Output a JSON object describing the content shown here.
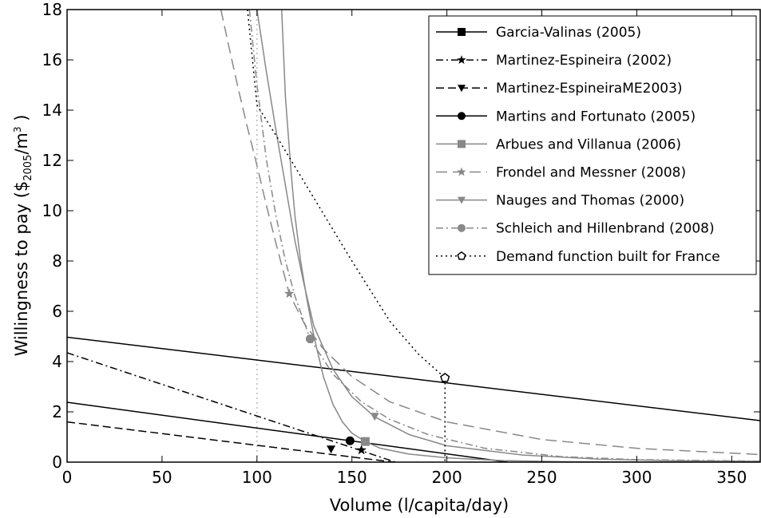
{
  "chart_data": {
    "type": "line",
    "title": "",
    "xlabel": "Volume (l/capita/day)",
    "ylabel_prefix": "Willingness to pay ($",
    "ylabel_sub": "2005",
    "ylabel_mid": "/m",
    "ylabel_sup": "3",
    "ylabel_suffix": " )",
    "xlim": [
      0,
      365
    ],
    "ylim": [
      0,
      18
    ],
    "xticks": [
      0,
      50,
      100,
      150,
      200,
      250,
      300,
      350
    ],
    "yticks": [
      0,
      2,
      4,
      6,
      8,
      10,
      12,
      14,
      16,
      18
    ],
    "grid": false,
    "legend_position": "top-right",
    "vlines": [
      {
        "x": 100,
        "color": "#bbbbbb",
        "dash": "dotted"
      }
    ],
    "series": [
      {
        "name": "Garcia-Valinas (2005)",
        "color": "#000000",
        "dash": "solid",
        "marker": "square",
        "x": [
          0,
          365
        ],
        "y": [
          4.97,
          1.65
        ],
        "marker_points": []
      },
      {
        "name": "Martinez-Espineira (2002)",
        "color": "#000000",
        "dash": "dashdot",
        "marker": "star",
        "x": [
          0,
          173
        ],
        "y": [
          4.35,
          0
        ],
        "marker_points": [
          [
            155,
            0.48
          ]
        ]
      },
      {
        "name": "Martinez-EspineiraME2003)",
        "color": "#000000",
        "dash": "dashed",
        "marker": "triangle-down",
        "x": [
          0,
          172
        ],
        "y": [
          1.6,
          0
        ],
        "marker_points": [
          [
            139,
            0.52
          ]
        ]
      },
      {
        "name": "Martins and Fortunato (2005)",
        "color": "#000000",
        "dash": "solid",
        "marker": "circle",
        "x": [
          0,
          232
        ],
        "y": [
          2.38,
          0
        ],
        "marker_points": [
          [
            149,
            0.85
          ]
        ]
      },
      {
        "name": "Arbues and Villanua (2006)",
        "color": "#888888",
        "dash": "solid",
        "marker": "square",
        "x": [
          113,
          115,
          118,
          120,
          123,
          126,
          130,
          135,
          140,
          145,
          150,
          157,
          165,
          180,
          200,
          230,
          260,
          300,
          365
        ],
        "y": [
          18,
          14.5,
          11.5,
          9.8,
          8.0,
          6.6,
          5.0,
          3.4,
          2.3,
          1.6,
          1.15,
          0.82,
          0.55,
          0.32,
          0.17,
          0.06,
          0.02,
          0.01,
          0.0
        ],
        "marker_points": [
          [
            157,
            0.82
          ]
        ]
      },
      {
        "name": "Frondel and Messner (2008)",
        "color": "#888888",
        "dash": "longdash",
        "marker": "star",
        "x": [
          81,
          85,
          90,
          95,
          100,
          105,
          110,
          117,
          125,
          135,
          150,
          170,
          200,
          250,
          300,
          365
        ],
        "y": [
          18,
          16.6,
          14.9,
          13.3,
          11.8,
          10.2,
          8.7,
          6.7,
          5.5,
          4.5,
          3.4,
          2.4,
          1.6,
          0.9,
          0.55,
          0.3
        ],
        "marker_points": [
          [
            117,
            6.7
          ]
        ]
      },
      {
        "name": "Nauges and Thomas (2000)",
        "color": "#888888",
        "dash": "solid",
        "marker": "triangle-down",
        "x": [
          100,
          105,
          110,
          115,
          120,
          125,
          130,
          140,
          150,
          162,
          180,
          200,
          240,
          280,
          320,
          365
        ],
        "y": [
          18,
          15.5,
          13.2,
          11.0,
          8.8,
          7.0,
          5.4,
          3.7,
          2.6,
          1.8,
          1.1,
          0.65,
          0.28,
          0.12,
          0.06,
          0.03
        ],
        "marker_points": [
          [
            162,
            1.82
          ]
        ]
      },
      {
        "name": "Schleich and Hillenbrand (2008)",
        "color": "#888888",
        "dash": "dashdot",
        "marker": "circle",
        "x": [
          96,
          100,
          105,
          110,
          115,
          120,
          128,
          140,
          155,
          170,
          190,
          220,
          260,
          300,
          365
        ],
        "y": [
          18,
          15.0,
          12.0,
          9.8,
          8.0,
          6.6,
          4.9,
          3.5,
          2.4,
          1.7,
          1.1,
          0.55,
          0.22,
          0.1,
          0.04
        ],
        "marker_points": [
          [
            128,
            4.9
          ]
        ]
      },
      {
        "name": "Demand function built for France",
        "color": "#000000",
        "dash": "dotted",
        "marker": "pentagon",
        "x": [
          95,
          100,
          110,
          130,
          150,
          170,
          185,
          199
        ],
        "y": [
          18,
          14.2,
          13.0,
          10.5,
          8.0,
          5.6,
          4.3,
          3.35
        ],
        "marker_points": [
          [
            199,
            3.35
          ]
        ],
        "drop_line": {
          "x": 199,
          "y_from": 3.35,
          "y_to": 0
        }
      }
    ]
  }
}
